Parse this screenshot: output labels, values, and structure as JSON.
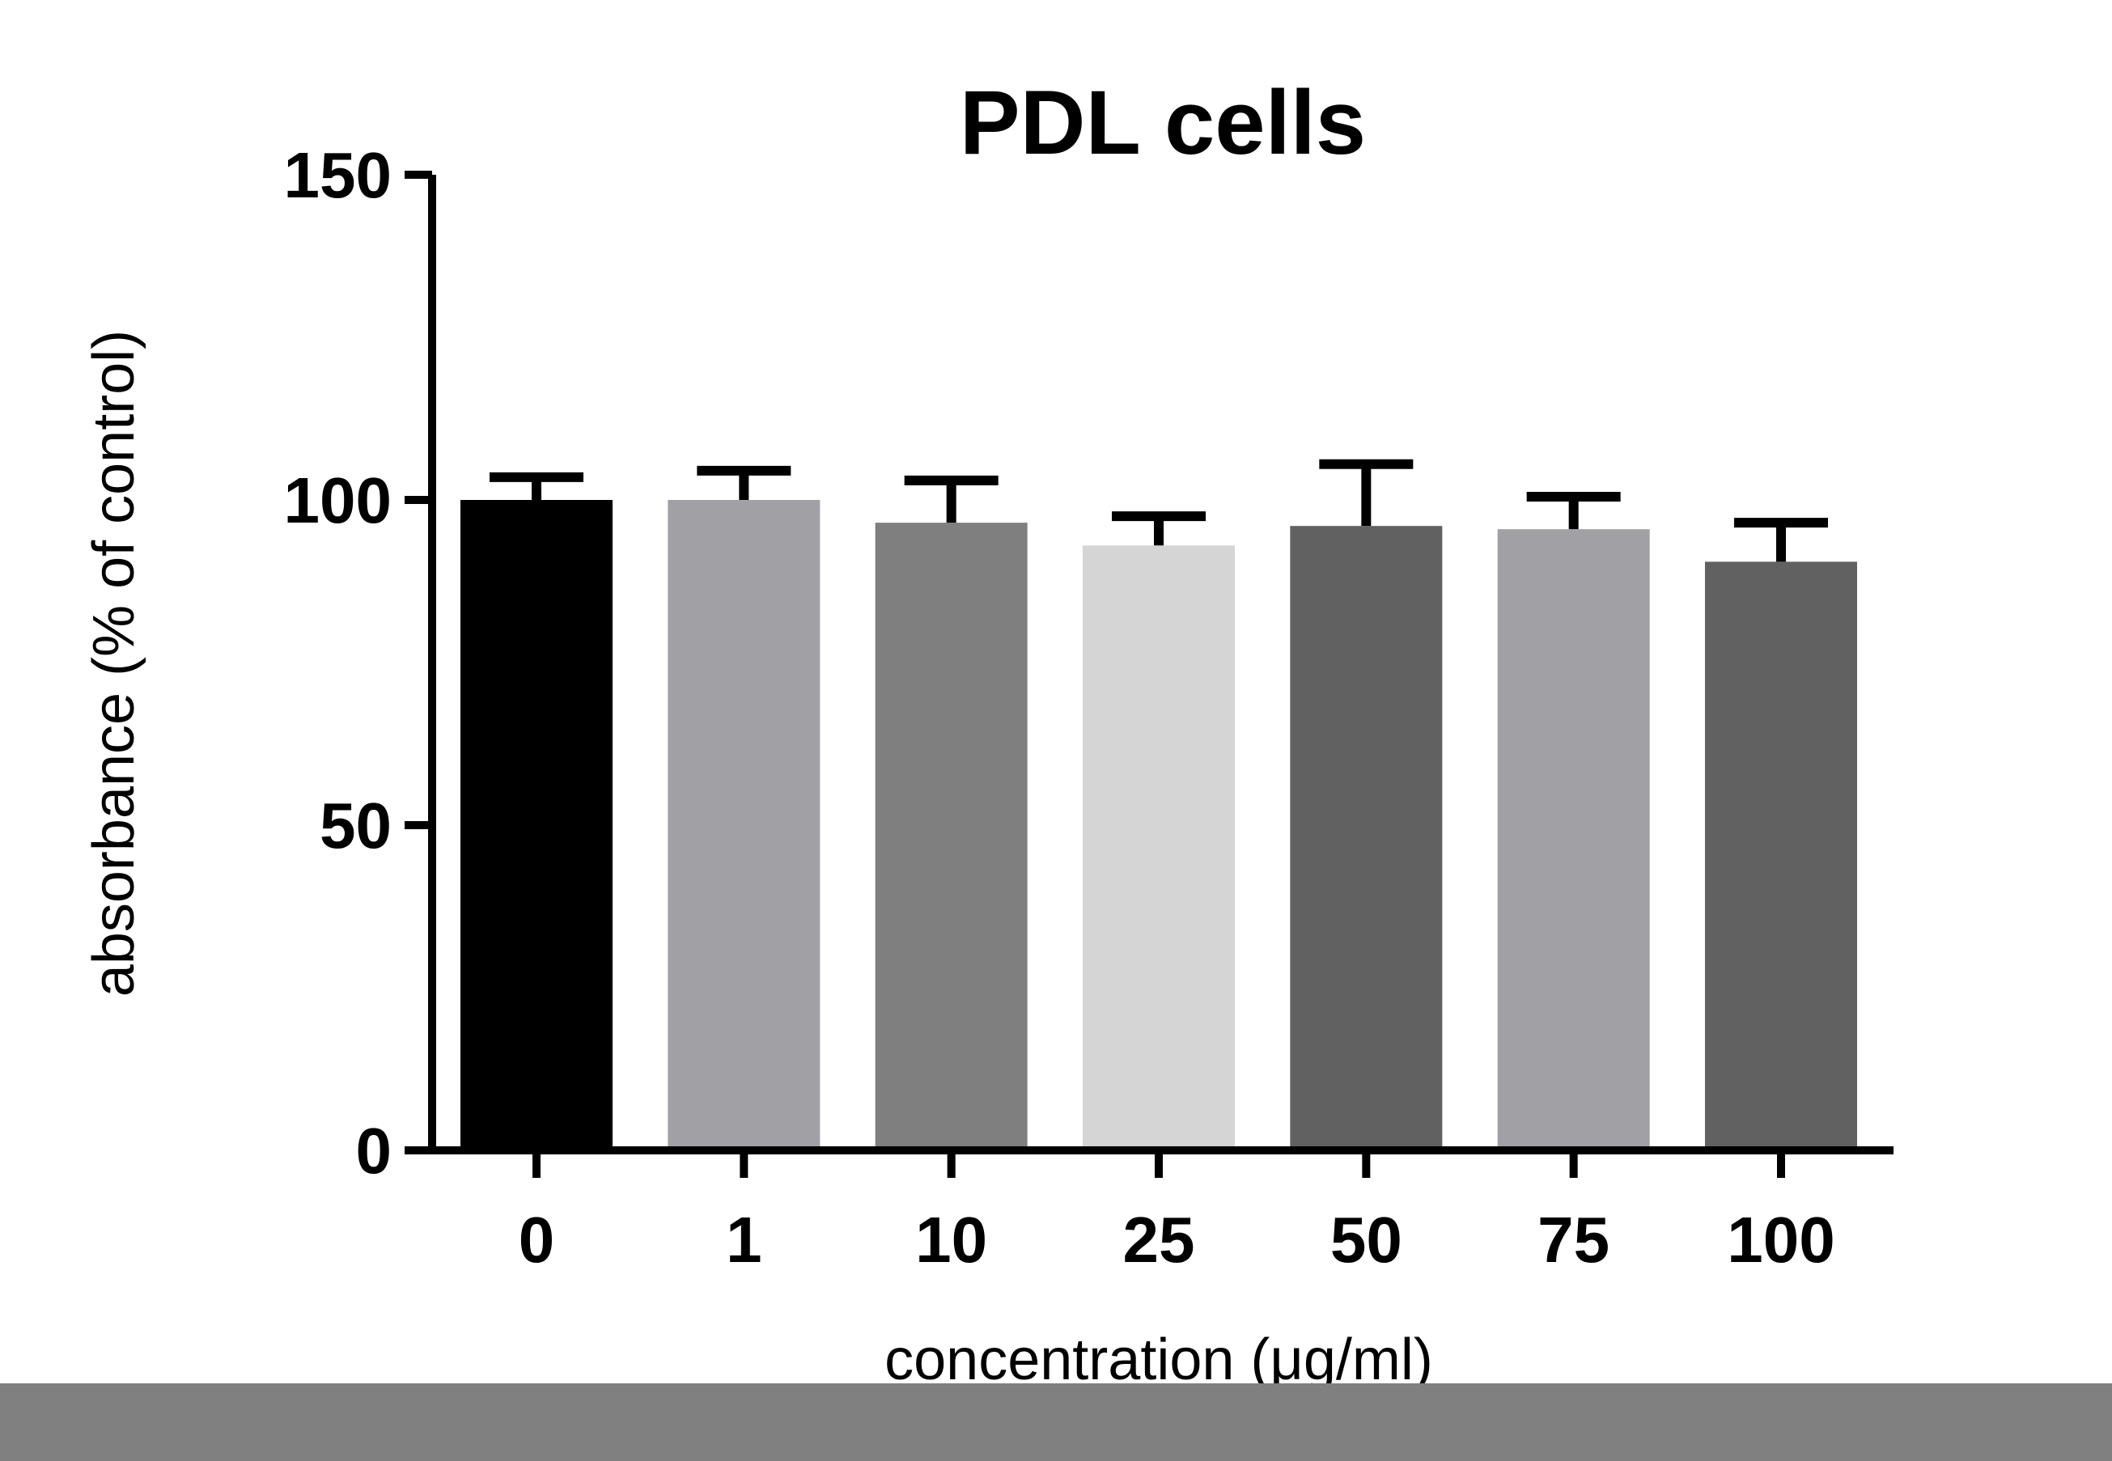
{
  "chart_data": {
    "type": "bar",
    "title": "PDL cells",
    "xlabel": "concentration (μg/ml)",
    "ylabel": "absorbance (% of control)",
    "categories": [
      "0",
      "1",
      "10",
      "25",
      "50",
      "75",
      "100"
    ],
    "values": [
      100,
      100,
      96.5,
      93,
      96,
      95.5,
      90.5
    ],
    "errors": [
      3.5,
      4.5,
      6.5,
      4.5,
      9.5,
      5,
      6
    ],
    "bar_colors": [
      "#000000",
      "#a1a0a4",
      "#7f7f7f",
      "#d5d5d5",
      "#616161",
      "#a1a0a4",
      "#616161"
    ],
    "ylim": [
      0,
      150
    ],
    "yticks": [
      "0",
      "50",
      "100",
      "150"
    ],
    "grid": false,
    "legend": "none"
  }
}
